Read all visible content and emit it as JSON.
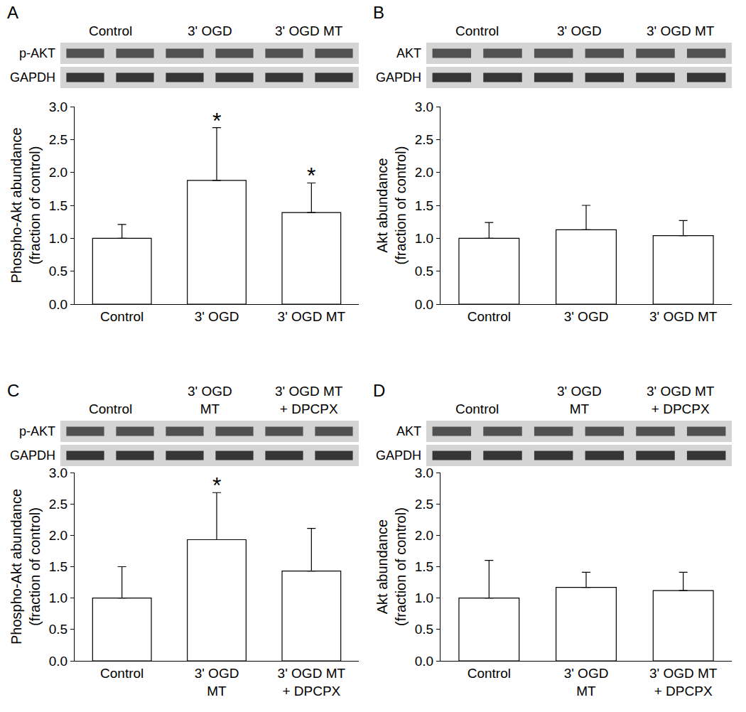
{
  "chart_data": [
    {
      "type": "bar",
      "panel": "A",
      "categories": [
        "Control",
        "3' OGD",
        "3' OGD MT"
      ],
      "values": [
        1.0,
        1.88,
        1.39
      ],
      "errors": [
        0.21,
        0.8,
        0.45
      ],
      "color": "#ffffff",
      "ylabel": [
        "Phospho-Akt abundance",
        "(fraction of control)"
      ],
      "ylim": [
        0,
        3
      ],
      "yticks": [
        {
          "value": 0,
          "label": "0.0"
        },
        {
          "value": 0.5,
          "label": "0.5"
        },
        {
          "value": 1,
          "label": "1.0"
        },
        {
          "value": 1.5,
          "label": "1.5"
        },
        {
          "value": 2,
          "label": "2.0"
        },
        {
          "value": 2.5,
          "label": "2.5"
        },
        {
          "value": 3,
          "label": "3.0"
        }
      ],
      "grid": false,
      "annotations": [
        {
          "category": "3' OGD",
          "text": "*"
        },
        {
          "category": "3' OGD MT",
          "text": "*"
        }
      ],
      "blot": {
        "lanes": [
          "Control",
          "3' OGD",
          "3' OGD MT"
        ],
        "rows": [
          "p-AKT",
          "GAPDH"
        ]
      }
    },
    {
      "type": "bar",
      "panel": "B",
      "categories": [
        "Control",
        "3' OGD",
        "3' OGD MT"
      ],
      "values": [
        1.0,
        1.13,
        1.04
      ],
      "errors": [
        0.24,
        0.37,
        0.23
      ],
      "color": "#ffffff",
      "ylabel": [
        "Akt abundance",
        "(fraction of control)"
      ],
      "ylim": [
        0,
        3
      ],
      "yticks": [
        {
          "value": 0,
          "label": "0.0"
        },
        {
          "value": 0.5,
          "label": "0.5"
        },
        {
          "value": 1,
          "label": "1.0"
        },
        {
          "value": 1.5,
          "label": "1.5"
        },
        {
          "value": 2,
          "label": "2.0"
        },
        {
          "value": 2.5,
          "label": "2.5"
        },
        {
          "value": 3,
          "label": "3.0"
        }
      ],
      "grid": false,
      "annotations": [],
      "blot": {
        "lanes": [
          "Control",
          "3' OGD",
          "3' OGD MT"
        ],
        "rows": [
          "AKT",
          "GAPDH"
        ]
      }
    },
    {
      "type": "bar",
      "panel": "C",
      "categories": [
        "Control",
        "3' OGD\nMT",
        "3' OGD MT\n+ DPCPX"
      ],
      "values": [
        1.0,
        1.93,
        1.43
      ],
      "errors": [
        0.5,
        0.75,
        0.68
      ],
      "color": "#ffffff",
      "ylabel": [
        "Phospho-Akt abundance",
        "(fraction of control)"
      ],
      "ylim": [
        0,
        3
      ],
      "yticks": [
        {
          "value": 0,
          "label": "0.0"
        },
        {
          "value": 0.5,
          "label": "0.5"
        },
        {
          "value": 1,
          "label": "1.0"
        },
        {
          "value": 1.5,
          "label": "1.5"
        },
        {
          "value": 2,
          "label": "2.0"
        },
        {
          "value": 2.5,
          "label": "2.5"
        },
        {
          "value": 3,
          "label": "3.0"
        }
      ],
      "grid": false,
      "annotations": [
        {
          "category": "3' OGD\nMT",
          "text": "*"
        }
      ],
      "blot": {
        "lanes": [
          "Control",
          "3' OGD\nMT",
          "3' OGD MT\n+ DPCPX"
        ],
        "rows": [
          "p-AKT",
          "GAPDH"
        ]
      }
    },
    {
      "type": "bar",
      "panel": "D",
      "categories": [
        "Control",
        "3' OGD\nMT",
        "3' OGD MT\n+ DPCPX"
      ],
      "values": [
        1.0,
        1.17,
        1.12
      ],
      "errors": [
        0.6,
        0.24,
        0.29
      ],
      "color": "#ffffff",
      "ylabel": [
        "Akt abundance",
        "(fraction of control)"
      ],
      "ylim": [
        0,
        3
      ],
      "yticks": [
        {
          "value": 0,
          "label": "0.0"
        },
        {
          "value": 0.5,
          "label": "0.5"
        },
        {
          "value": 1,
          "label": "1.0"
        },
        {
          "value": 1.5,
          "label": "1.5"
        },
        {
          "value": 2,
          "label": "2.0"
        },
        {
          "value": 2.5,
          "label": "2.5"
        },
        {
          "value": 3,
          "label": "3.0"
        }
      ],
      "grid": false,
      "annotations": [],
      "blot": {
        "lanes": [
          "Control",
          "3' OGD\nMT",
          "3' OGD MT\n+ DPCPX"
        ],
        "rows": [
          "AKT",
          "GAPDH"
        ]
      }
    }
  ]
}
